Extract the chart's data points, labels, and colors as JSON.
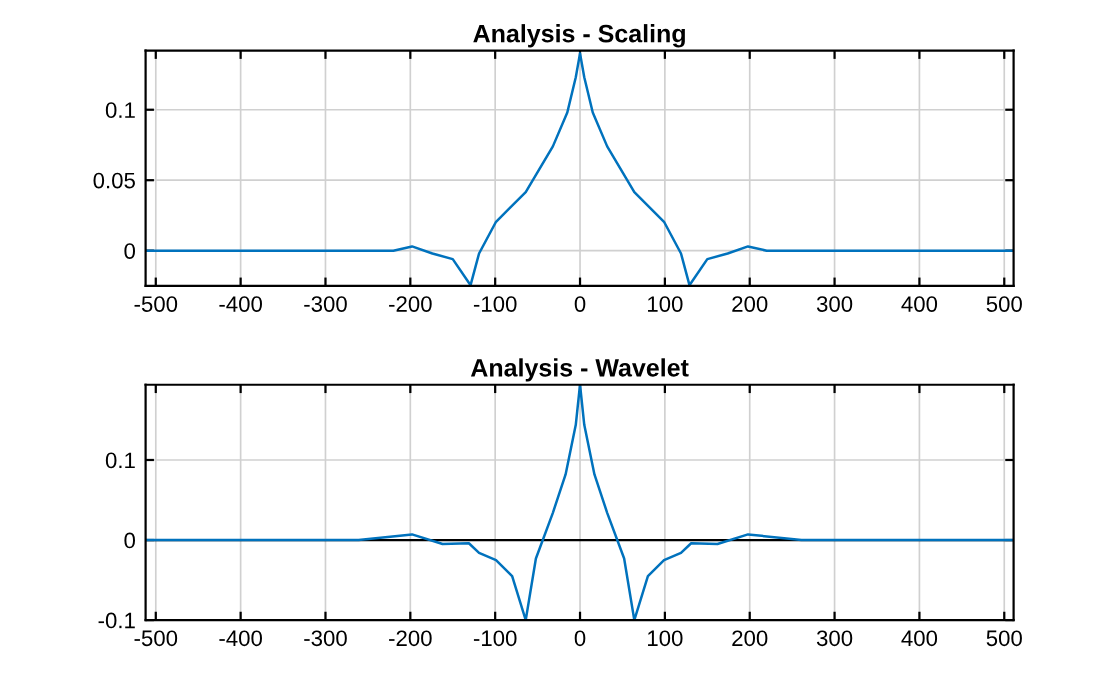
{
  "chart_data": [
    {
      "type": "line",
      "title": "Analysis - Scaling",
      "grid": true,
      "xlim": [
        -512,
        511
      ],
      "ylim": [
        -0.025,
        0.142
      ],
      "xticks": [
        -500,
        -400,
        -300,
        -200,
        -100,
        0,
        100,
        200,
        300,
        400,
        500
      ],
      "yticks": [
        0,
        0.05,
        0.1
      ],
      "series": [
        {
          "color": "#0072bd",
          "x": [
            -512,
            -220,
            -198,
            -174,
            -150,
            -129,
            -119,
            -99,
            -64,
            -32,
            -15,
            -5,
            0,
            5,
            15,
            32,
            64,
            99,
            119,
            129,
            150,
            174,
            198,
            220,
            511
          ],
          "values": [
            0,
            0,
            0.003,
            -0.002,
            -0.006,
            -0.0245,
            -0.002,
            0.0205,
            0.0415,
            0.074,
            0.098,
            0.123,
            0.14,
            0.123,
            0.098,
            0.074,
            0.0415,
            0.0205,
            -0.002,
            -0.0245,
            -0.006,
            -0.002,
            0.003,
            0,
            0
          ]
        }
      ]
    },
    {
      "type": "line",
      "title": "Analysis - Wavelet",
      "grid": true,
      "xlim": [
        -512,
        511
      ],
      "ylim": [
        -0.1,
        0.194
      ],
      "xticks": [
        -500,
        -400,
        -300,
        -200,
        -100,
        0,
        100,
        200,
        300,
        400,
        500
      ],
      "yticks": [
        -0.1,
        0,
        0.1
      ],
      "ref_lines": [
        {
          "axis": "y",
          "value": 0,
          "color": "#000000"
        }
      ],
      "series": [
        {
          "color": "#0072bd",
          "x": [
            -512,
            -261,
            -198,
            -162,
            -131,
            -119,
            -99,
            -80,
            -64,
            -52,
            -32,
            -17,
            -5,
            0,
            5,
            17,
            32,
            52,
            64,
            80,
            99,
            119,
            131,
            162,
            198,
            261,
            511
          ],
          "values": [
            0,
            0,
            0.007,
            -0.005,
            -0.004,
            -0.016,
            -0.025,
            -0.045,
            -0.1,
            -0.023,
            0.034,
            0.082,
            0.144,
            0.194,
            0.144,
            0.082,
            0.034,
            -0.023,
            -0.1,
            -0.045,
            -0.025,
            -0.016,
            -0.004,
            -0.005,
            0.007,
            0,
            0
          ]
        }
      ]
    }
  ]
}
